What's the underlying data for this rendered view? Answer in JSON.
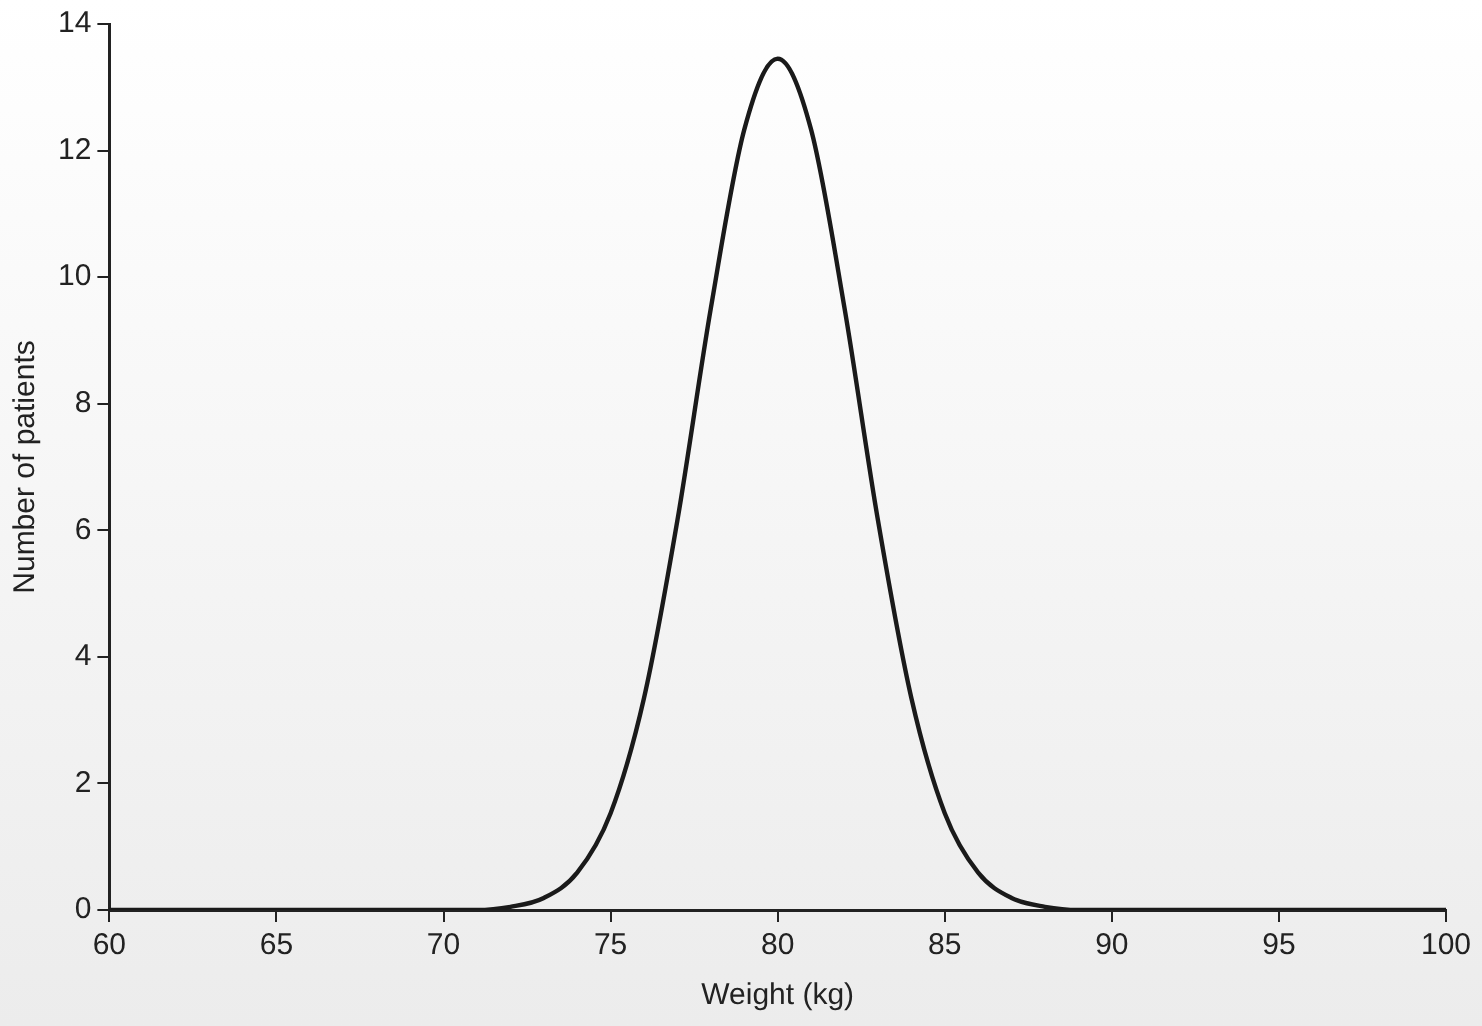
{
  "chart_data": {
    "type": "line",
    "xlabel": "Weight (kg)",
    "ylabel": "Number of patients",
    "x": [
      60,
      65,
      70,
      71,
      72,
      73,
      74,
      75,
      76,
      77,
      78,
      79,
      80,
      81,
      82,
      83,
      84,
      85,
      86,
      87,
      88,
      89,
      90,
      95,
      100
    ],
    "series": [
      {
        "color": "#1a1a1a",
        "values": [
          0,
          0,
          0,
          0,
          0.05,
          0.19,
          0.59,
          1.53,
          3.35,
          6.16,
          9.51,
          12.33,
          13.45,
          12.33,
          9.51,
          6.16,
          3.35,
          1.53,
          0.59,
          0.19,
          0.05,
          0,
          0,
          0,
          0
        ]
      }
    ],
    "xlim": [
      60,
      100
    ],
    "xticks": [
      60,
      65,
      70,
      75,
      80,
      85,
      90,
      95,
      100
    ],
    "ylim": [
      0,
      14
    ],
    "yticks": [
      0,
      2,
      4,
      6,
      8,
      10,
      12,
      14
    ],
    "grid": false,
    "legend": false,
    "marker": "none",
    "line_style": "solid"
  }
}
